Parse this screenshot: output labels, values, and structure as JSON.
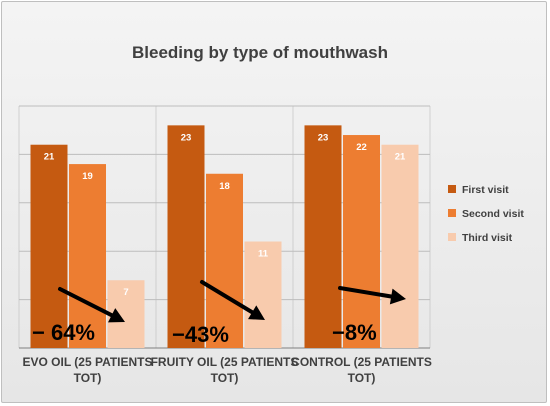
{
  "chart_data": {
    "type": "bar",
    "title": "Bleeding by type of mouthwash",
    "categories": [
      [
        "EVO OIL (25 PATIENTS",
        "TOT)"
      ],
      [
        "FRUITY OIL (25 PATIENTS",
        "TOT)"
      ],
      [
        "CONTROL (25 PATIENTS",
        "TOT)"
      ]
    ],
    "series": [
      {
        "name": "First visit",
        "values": [
          21,
          23,
          23
        ],
        "color": "#c55a11"
      },
      {
        "name": "Second visit",
        "values": [
          19,
          18,
          22
        ],
        "color": "#ed7d31"
      },
      {
        "name": "Third visit",
        "values": [
          7,
          11,
          21
        ],
        "color": "#f8cbad"
      }
    ],
    "annotations": [
      "− 64%",
      "−43%",
      "−8%"
    ],
    "ylim": [
      0,
      25
    ],
    "grid": true,
    "legend": "right"
  },
  "colors": {
    "grid": "#bdbdbd",
    "axis": "#7f7f7f",
    "arrow": "#000000"
  }
}
